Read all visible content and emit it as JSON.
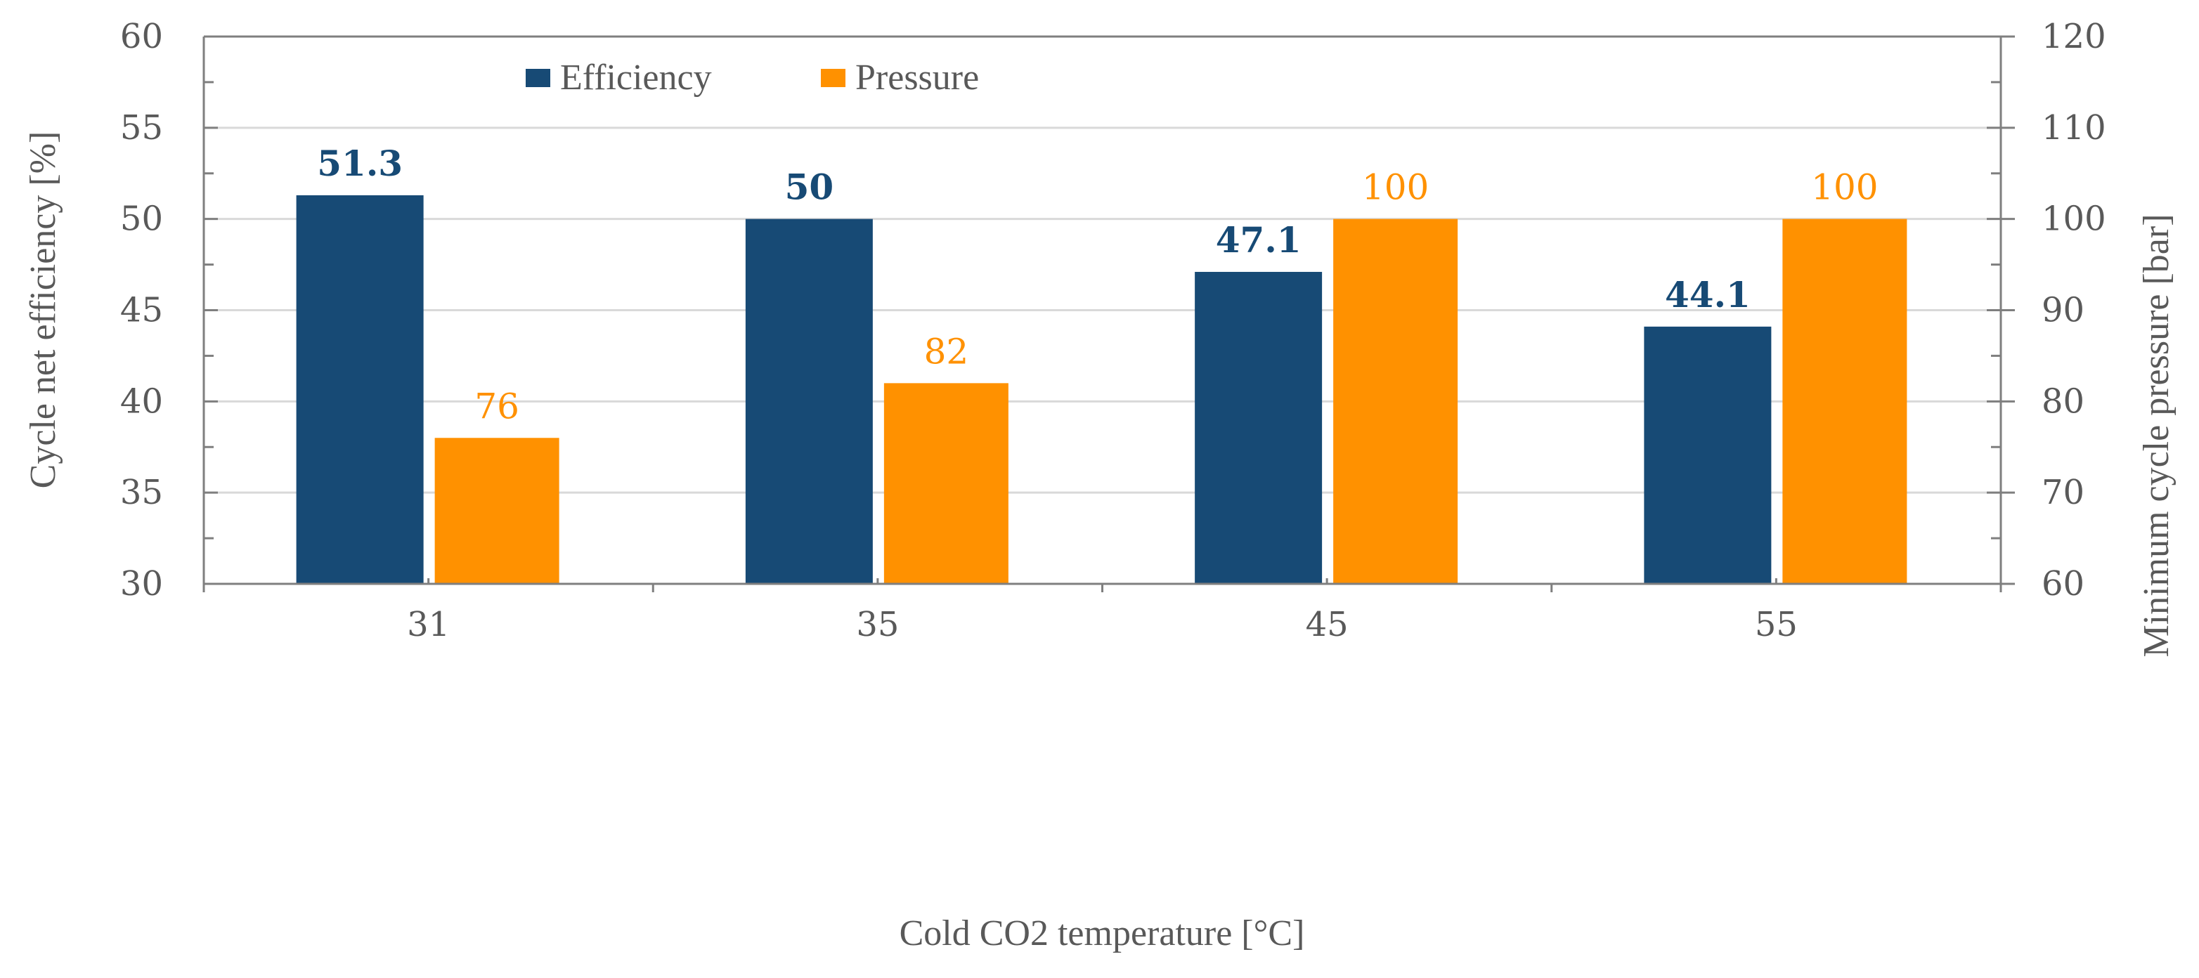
{
  "chart_data": {
    "type": "bar",
    "title": "",
    "xlabel": "Cold CO2 temperature [°C]",
    "ylabel": "Cycle net efficiency [%]",
    "y2label": "Minimum cycle pressure [bar]",
    "categories": [
      "31",
      "35",
      "45",
      "55"
    ],
    "ylim": [
      30,
      60
    ],
    "y2lim": [
      60,
      120
    ],
    "yticks": [
      "30",
      "35",
      "40",
      "45",
      "50",
      "55",
      "60"
    ],
    "y2ticks": [
      "60",
      "70",
      "80",
      "90",
      "100",
      "110",
      "120"
    ],
    "grid": true,
    "legend_position": "top-left",
    "series": [
      {
        "name": "Efficiency",
        "axis": "left",
        "color": "#174a75",
        "values": [
          51.3,
          50,
          47.1,
          44.1
        ],
        "labels": [
          "51.3",
          "50",
          "47.1",
          "44.1"
        ]
      },
      {
        "name": "Pressure",
        "axis": "right",
        "color": "#ff9100",
        "values": [
          76,
          82,
          100,
          100
        ],
        "labels": [
          "76",
          "82",
          "100",
          "100"
        ]
      }
    ]
  }
}
